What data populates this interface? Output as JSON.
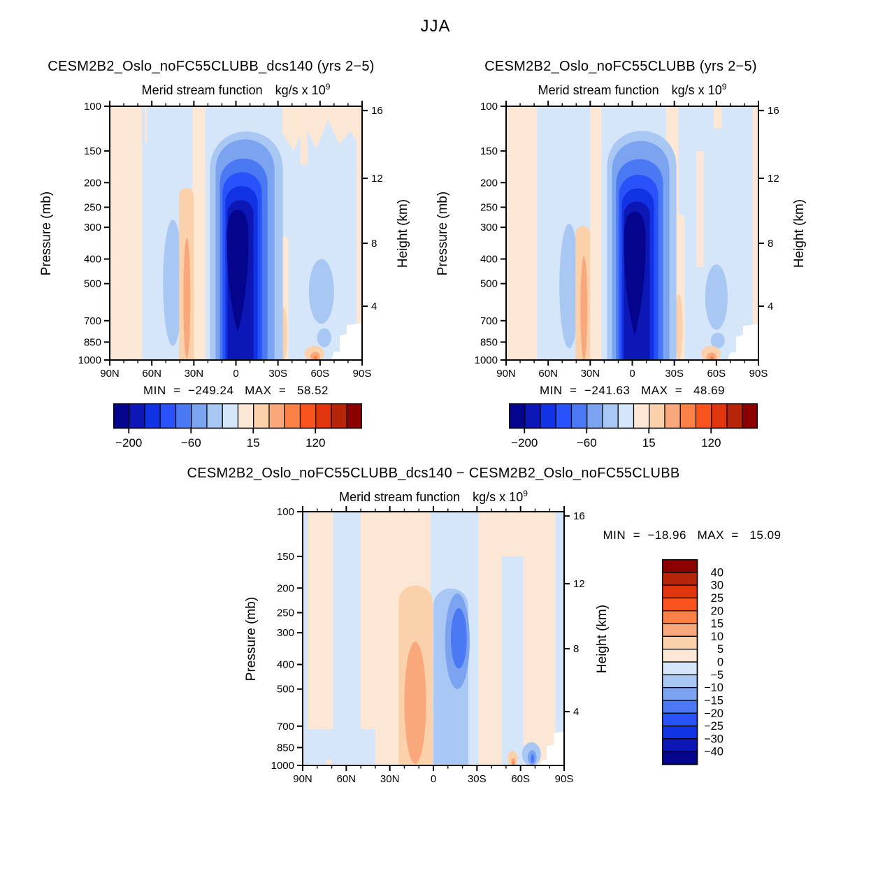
{
  "page": {
    "season_title": "JJA"
  },
  "palette": [
    "#04058C",
    "#0D17B5",
    "#1133E3",
    "#2A52FA",
    "#4B79F3",
    "#7CA3F0",
    "#A9C7F3",
    "#D5E6FA",
    "#FBE7D3",
    "#FBD1AC",
    "#F9A87C",
    "#FB8146",
    "#FA541E",
    "#E1350E",
    "#B72508",
    "#8B0000"
  ],
  "white": "#FFFFFF",
  "labels": {
    "field": "Merid stream function",
    "units_base": "kg/s x 10",
    "units_exp": "9",
    "pressure_axis": "Pressure (mb)",
    "height_axis": "Height (km)"
  },
  "chart_data": {
    "type": "heatmap",
    "subtype": "latitude-pressure contour panels",
    "season": "JJA",
    "field": "Merid stream function",
    "units": "kg/s x 10^9",
    "x_axis": {
      "label_values": [
        90,
        60,
        30,
        0,
        -30,
        -60,
        -90
      ],
      "labels": [
        "90N",
        "60N",
        "30N",
        "0",
        "30S",
        "60S",
        "90S"
      ],
      "minor_step_deg": 10,
      "range": [
        90,
        -90
      ]
    },
    "y_axis_left": {
      "label": "Pressure (mb)",
      "scale": "log",
      "ticks": [
        100,
        150,
        200,
        250,
        300,
        400,
        500,
        700,
        850,
        1000
      ],
      "range": [
        100,
        1000
      ]
    },
    "y_axis_right": {
      "label": "Height (km)",
      "ticks": [
        16,
        12,
        8,
        4
      ],
      "fractions": [
        0.017,
        0.284,
        0.54,
        0.788
      ]
    },
    "colorbar_top": {
      "orientation": "horizontal",
      "labels": [
        "−200",
        "−60",
        "15",
        "120"
      ],
      "boundaries": [
        1,
        5,
        9,
        13
      ]
    },
    "colorbar_diff": {
      "orientation": "vertical",
      "labels": [
        "40",
        "30",
        "25",
        "20",
        "15",
        "10",
        "5",
        "0",
        "−5",
        "−10",
        "−15",
        "−20",
        "−25",
        "−30",
        "−40"
      ]
    },
    "panels": [
      {
        "key": "a",
        "title": "CESM2B2_Oslo_noFC55CLUBB_dcs140 (yrs 2−5)",
        "min": -249.24,
        "max": 58.52,
        "stats_text": "MIN  =  −249.24   MAX  =   58.52",
        "colorbar": "top",
        "features": [
          {
            "shape": "rect",
            "lat": [
              90,
              -90
            ],
            "p": [
              100,
              1000
            ],
            "ci": 8
          },
          {
            "shape": "rect",
            "lat": [
              67,
              31
            ],
            "p": [
              100,
              1000
            ],
            "ci": 7
          },
          {
            "shape": "rect",
            "lat": [
              22,
              -86
            ],
            "p": [
              100,
              1000
            ],
            "ci": 7
          },
          {
            "shape": "ellipse",
            "lat": [
              52,
              38
            ],
            "p": [
              280,
              880
            ],
            "ci": 6
          },
          {
            "shape": "ellipse",
            "lat": [
              -52,
              -70
            ],
            "p": [
              400,
              720
            ],
            "ci": 6
          },
          {
            "shape": "ellipse",
            "lat": [
              -58,
              -68
            ],
            "p": [
              750,
              890
            ],
            "ci": 6
          },
          {
            "shape": "jagged",
            "lat": [
              -33,
              -90
            ],
            "p": [
              100,
              150
            ],
            "ci": 8
          },
          {
            "shape": "rect",
            "lat": [
              -46,
              -51
            ],
            "p": [
              100,
              170
            ],
            "ci": 8
          },
          {
            "shape": "rect",
            "lat": [
              71,
              69
            ],
            "p": [
              100,
              128
            ],
            "ci": 8
          },
          {
            "shape": "rect",
            "lat": [
              65,
              63.5
            ],
            "p": [
              100,
              140
            ],
            "ci": 8
          },
          {
            "shape": "tube",
            "lat": [
              40.5,
              30
            ],
            "p": [
              205,
              1000
            ],
            "ci": 9
          },
          {
            "shape": "ellipse",
            "lat": [
              37.5,
              32.5
            ],
            "p": [
              330,
              990
            ],
            "ci": 10
          },
          {
            "shape": "tube",
            "lat": [
              -30.5,
              -37.5
            ],
            "p": [
              320,
              1000
            ],
            "ci": 8
          },
          {
            "shape": "ellipse",
            "lat": [
              -31.5,
              -36.5
            ],
            "p": [
              620,
              1000
            ],
            "ci": 9
          },
          {
            "shape": "ellipse",
            "lat": [
              -49,
              -63
            ],
            "p": [
              880,
              1015
            ],
            "ci": 9
          },
          {
            "shape": "ellipse",
            "lat": [
              -53,
              -60
            ],
            "p": [
              930,
              1010
            ],
            "ci": 10
          },
          {
            "shape": "ellipse",
            "lat": [
              -55.5,
              -58
            ],
            "p": [
              960,
              1005
            ],
            "ci": 11
          },
          {
            "shape": "tube",
            "lat": [
              18.5,
              -33.5
            ],
            "p": [
              112,
              1000
            ],
            "ci": 6
          },
          {
            "shape": "tube",
            "lat": [
              14.5,
              -27.5
            ],
            "p": [
              123,
              1000
            ],
            "ci": 5
          },
          {
            "shape": "tube",
            "lat": [
              11.5,
              -22.5
            ],
            "p": [
              149,
              1000
            ],
            "ci": 4
          },
          {
            "shape": "tube",
            "lat": [
              9.5,
              -18.5
            ],
            "p": [
              171,
              1000
            ],
            "ci": 3
          },
          {
            "shape": "tube",
            "lat": [
              7.5,
              -15.5
            ],
            "p": [
              196,
              1000
            ],
            "ci": 2
          },
          {
            "shape": "tube",
            "lat": [
              6,
              -12.5
            ],
            "p": [
              225,
              1000
            ],
            "ci": 1
          },
          {
            "shape": "drop",
            "lat": [
              6.5,
              -9
            ],
            "p": [
              256,
              780
            ],
            "ci": 0
          },
          {
            "shape": "polygon",
            "pts": [
              [
                -68,
                1000
              ],
              [
                -70,
                930
              ],
              [
                -74,
                930
              ],
              [
                -74,
                800
              ],
              [
                -79,
                790
              ],
              [
                -79,
                730
              ],
              [
                -90,
                715
              ],
              [
                -90,
                1000
              ]
            ],
            "ci": "white"
          }
        ]
      },
      {
        "key": "b",
        "title": "CESM2B2_Oslo_noFC55CLUBB (yrs 2−5)",
        "min": -241.63,
        "max": 48.69,
        "stats_text": "MIN  =  −241.63   MAX  =   48.69",
        "colorbar": "top",
        "features": [
          {
            "shape": "rect",
            "lat": [
              90,
              -90
            ],
            "p": [
              100,
              1000
            ],
            "ci": 8
          },
          {
            "shape": "rect",
            "lat": [
              68,
              30
            ],
            "p": [
              100,
              1000
            ],
            "ci": 7
          },
          {
            "shape": "rect",
            "lat": [
              22,
              -86
            ],
            "p": [
              100,
              1000
            ],
            "ci": 7
          },
          {
            "shape": "ellipse",
            "lat": [
              52,
              38
            ],
            "p": [
              290,
              900
            ],
            "ci": 6
          },
          {
            "shape": "ellipse",
            "lat": [
              -52,
              -68
            ],
            "p": [
              420,
              760
            ],
            "ci": 6
          },
          {
            "shape": "ellipse",
            "lat": [
              -56,
              -66
            ],
            "p": [
              780,
              900
            ],
            "ci": 6
          },
          {
            "shape": "rect",
            "lat": [
              -24,
              -33
            ],
            "p": [
              100,
              500
            ],
            "ci": 8
          },
          {
            "shape": "rect",
            "lat": [
              -46,
              -51
            ],
            "p": [
              150,
              430
            ],
            "ci": 8
          },
          {
            "shape": "rect",
            "lat": [
              -58,
              -64
            ],
            "p": [
              100,
              122
            ],
            "ci": 8
          },
          {
            "shape": "tube",
            "lat": [
              40.5,
              30
            ],
            "p": [
              290,
              1000
            ],
            "ci": 9
          },
          {
            "shape": "ellipse",
            "lat": [
              37,
              32
            ],
            "p": [
              390,
              1000
            ],
            "ci": 10
          },
          {
            "shape": "tube",
            "lat": [
              -28.5,
              -37.5
            ],
            "p": [
              260,
              1000
            ],
            "ci": 8
          },
          {
            "shape": "ellipse",
            "lat": [
              -30.5,
              -36
            ],
            "p": [
              550,
              1000
            ],
            "ci": 9
          },
          {
            "shape": "ellipse",
            "lat": [
              -49,
              -63
            ],
            "p": [
              880,
              1015
            ],
            "ci": 9
          },
          {
            "shape": "ellipse",
            "lat": [
              -53,
              -60
            ],
            "p": [
              935,
              1010
            ],
            "ci": 10
          },
          {
            "shape": "ellipse",
            "lat": [
              -55.5,
              -58
            ],
            "p": [
              965,
              1005
            ],
            "ci": 11
          },
          {
            "shape": "tube",
            "lat": [
              18,
              -31.5
            ],
            "p": [
              112,
              1000
            ],
            "ci": 6
          },
          {
            "shape": "tube",
            "lat": [
              14.5,
              -26.5
            ],
            "p": [
              125,
              1000
            ],
            "ci": 5
          },
          {
            "shape": "tube",
            "lat": [
              11.5,
              -22
            ],
            "p": [
              150,
              1000
            ],
            "ci": 4
          },
          {
            "shape": "tube",
            "lat": [
              9.5,
              -18.5
            ],
            "p": [
              175,
              1000
            ],
            "ci": 3
          },
          {
            "shape": "tube",
            "lat": [
              7.5,
              -15.5
            ],
            "p": [
              200,
              1000
            ],
            "ci": 2
          },
          {
            "shape": "tube",
            "lat": [
              6,
              -12.5
            ],
            "p": [
              228,
              1000
            ],
            "ci": 1
          },
          {
            "shape": "drop",
            "lat": [
              6,
              -9.5
            ],
            "p": [
              260,
              800
            ],
            "ci": 0
          },
          {
            "shape": "polygon",
            "pts": [
              [
                -68,
                1000
              ],
              [
                -70,
                935
              ],
              [
                -74,
                935
              ],
              [
                -74,
                810
              ],
              [
                -79,
                795
              ],
              [
                -79,
                735
              ],
              [
                -90,
                720
              ],
              [
                -90,
                1000
              ]
            ],
            "ci": "white"
          }
        ]
      },
      {
        "key": "diff",
        "title": "CESM2B2_Oslo_noFC55CLUBB_dcs140 − CESM2B2_Oslo_noFC55CLUBB",
        "min": -18.96,
        "max": 15.09,
        "stats_text": "MIN  =  −18.96   MAX  =   15.09",
        "colorbar": "diff",
        "features": [
          {
            "shape": "rect",
            "lat": [
              90,
              -90
            ],
            "p": [
              100,
              1000
            ],
            "ci": 8
          },
          {
            "shape": "rect",
            "lat": [
              90,
              86.5
            ],
            "p": [
              100,
              1000
            ],
            "ci": 7
          },
          {
            "shape": "rect",
            "lat": [
              69,
              50
            ],
            "p": [
              100,
              1000
            ],
            "ci": 7
          },
          {
            "shape": "rect",
            "lat": [
              88,
              40
            ],
            "p": [
              720,
              1000
            ],
            "ci": 7
          },
          {
            "shape": "rect",
            "lat": [
              74,
              70
            ],
            "p": [
              950,
              1000
            ],
            "ci": 8
          },
          {
            "shape": "rect",
            "lat": [
              2,
              -31
            ],
            "p": [
              100,
              1000
            ],
            "ci": 7
          },
          {
            "shape": "rect",
            "lat": [
              -47,
              -62
            ],
            "p": [
              150,
              1000
            ],
            "ci": 7
          },
          {
            "shape": "rect",
            "lat": [
              -84,
              -90
            ],
            "p": [
              100,
              1000
            ],
            "ci": 7
          },
          {
            "shape": "tube",
            "lat": [
              0,
              -24
            ],
            "p": [
              190,
              1000
            ],
            "ci": 6
          },
          {
            "shape": "ellipse",
            "lat": [
              -8,
              -25
            ],
            "p": [
              210,
              500
            ],
            "ci": 5
          },
          {
            "shape": "ellipse",
            "lat": [
              -12,
              -23
            ],
            "p": [
              240,
              415
            ],
            "ci": 4
          },
          {
            "shape": "tube",
            "lat": [
              24,
              0.5
            ],
            "p": [
              185,
              1000
            ],
            "ci": 9
          },
          {
            "shape": "ellipse",
            "lat": [
              20,
              5
            ],
            "p": [
              325,
              985
            ],
            "ci": 10
          },
          {
            "shape": "ellipse",
            "lat": [
              -61,
              -74
            ],
            "p": [
              810,
              1005
            ],
            "ci": 6
          },
          {
            "shape": "ellipse",
            "lat": [
              -65,
              -71
            ],
            "p": [
              870,
              995
            ],
            "ci": 5
          },
          {
            "shape": "ellipse",
            "lat": [
              -67,
              -69.5
            ],
            "p": [
              905,
              980
            ],
            "ci": 4
          },
          {
            "shape": "ellipse",
            "lat": [
              -51,
              -58
            ],
            "p": [
              875,
              1012
            ],
            "ci": 9
          },
          {
            "shape": "ellipse",
            "lat": [
              -53.5,
              -56.5
            ],
            "p": [
              935,
              1008
            ],
            "ci": 10
          },
          {
            "shape": "ellipse",
            "lat": [
              -54.5,
              -55.5
            ],
            "p": [
              960,
              1002
            ],
            "ci": 11
          },
          {
            "shape": "polygon",
            "pts": [
              [
                -73,
                1000
              ],
              [
                -75,
                950
              ],
              [
                -78,
                950
              ],
              [
                -78,
                840
              ],
              [
                -83,
                830
              ],
              [
                -83,
                745
              ],
              [
                -90,
                735
              ],
              [
                -90,
                1000
              ]
            ],
            "ci": "white"
          }
        ]
      }
    ]
  }
}
